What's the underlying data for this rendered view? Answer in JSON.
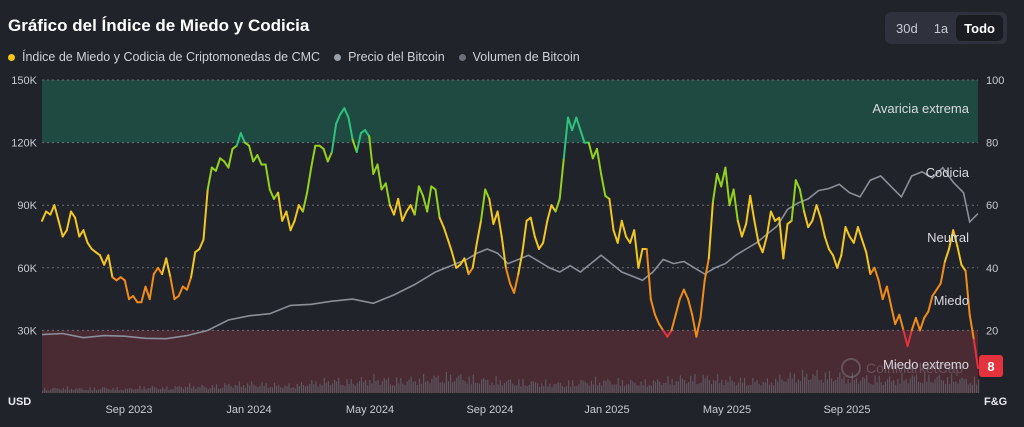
{
  "header": {
    "title": "Gráfico del Índice de Miedo y Codicia",
    "range_buttons": [
      {
        "label": "30d",
        "active": false
      },
      {
        "label": "1a",
        "active": false
      },
      {
        "label": "Todo",
        "active": true
      }
    ]
  },
  "legend": [
    {
      "label": "Índice de Miedo y Codicia de Criptomonedas de CMC",
      "color": "#f5c518"
    },
    {
      "label": "Precio del Bitcoin",
      "color": "#9aa0aa"
    },
    {
      "label": "Volumen de Bitcoin",
      "color": "#6c707a"
    }
  ],
  "watermark": "CoinMarketCap",
  "chart_data": {
    "type": "line",
    "x_ticks": [
      "Sep 2023",
      "Jan 2024",
      "May 2024",
      "Sep 2024",
      "Jan 2025",
      "May 2025",
      "Sep 2025"
    ],
    "y_left": {
      "unit_label": "USD",
      "ticks": [
        "30K",
        "60K",
        "90K",
        "120K",
        "150K"
      ],
      "range": [
        0,
        150000
      ]
    },
    "y_right": {
      "unit_label": "F&G",
      "ticks": [
        "20",
        "40",
        "60",
        "80",
        "100"
      ],
      "range": [
        0,
        100
      ]
    },
    "zones": [
      {
        "label": "Avaricia extrema",
        "range": [
          80,
          100
        ],
        "color": "#1f4a42"
      },
      {
        "label": "Codicia",
        "range": [
          60,
          80
        ]
      },
      {
        "label": "Neutral",
        "range": [
          40,
          60
        ]
      },
      {
        "label": "Miedo",
        "range": [
          20,
          40
        ]
      },
      {
        "label": "Miedo extremo",
        "range": [
          0,
          20
        ],
        "color": "#4a2a33"
      }
    ],
    "current_value": "8",
    "current_value_color": "#e5333d",
    "fear_greed_index": [
      [
        0,
        55
      ],
      [
        2,
        58
      ],
      [
        4,
        57
      ],
      [
        6,
        60
      ],
      [
        8,
        55
      ],
      [
        10,
        50
      ],
      [
        12,
        52
      ],
      [
        14,
        58
      ],
      [
        16,
        56
      ],
      [
        18,
        50
      ],
      [
        20,
        52
      ],
      [
        22,
        48
      ],
      [
        24,
        46
      ],
      [
        26,
        45
      ],
      [
        28,
        44
      ],
      [
        30,
        41
      ],
      [
        32,
        44
      ],
      [
        34,
        37
      ],
      [
        36,
        36
      ],
      [
        38,
        37
      ],
      [
        40,
        36
      ],
      [
        42,
        30
      ],
      [
        44,
        31
      ],
      [
        46,
        29
      ],
      [
        48,
        29
      ],
      [
        50,
        34
      ],
      [
        52,
        30
      ],
      [
        54,
        38
      ],
      [
        56,
        40
      ],
      [
        58,
        38
      ],
      [
        60,
        43
      ],
      [
        62,
        37
      ],
      [
        64,
        30
      ],
      [
        66,
        31
      ],
      [
        68,
        34
      ],
      [
        70,
        33
      ],
      [
        72,
        37
      ],
      [
        74,
        45
      ],
      [
        76,
        46
      ],
      [
        78,
        49
      ],
      [
        80,
        65
      ],
      [
        82,
        72
      ],
      [
        84,
        71
      ],
      [
        86,
        75
      ],
      [
        88,
        74
      ],
      [
        90,
        72
      ],
      [
        92,
        78
      ],
      [
        94,
        79
      ],
      [
        96,
        83
      ],
      [
        98,
        80
      ],
      [
        100,
        79
      ],
      [
        102,
        74
      ],
      [
        104,
        76
      ],
      [
        106,
        73
      ],
      [
        108,
        73
      ],
      [
        110,
        65
      ],
      [
        112,
        62
      ],
      [
        114,
        64
      ],
      [
        116,
        55
      ],
      [
        118,
        58
      ],
      [
        120,
        52
      ],
      [
        122,
        55
      ],
      [
        124,
        60
      ],
      [
        126,
        58
      ],
      [
        128,
        64
      ],
      [
        130,
        72
      ],
      [
        132,
        79
      ],
      [
        134,
        79
      ],
      [
        136,
        78
      ],
      [
        138,
        74
      ],
      [
        140,
        77
      ],
      [
        142,
        86
      ],
      [
        144,
        89
      ],
      [
        146,
        91
      ],
      [
        148,
        88
      ],
      [
        150,
        81
      ],
      [
        152,
        77
      ],
      [
        154,
        83
      ],
      [
        156,
        84
      ],
      [
        158,
        82
      ],
      [
        160,
        70
      ],
      [
        162,
        73
      ],
      [
        164,
        65
      ],
      [
        166,
        67
      ],
      [
        168,
        60
      ],
      [
        170,
        57
      ],
      [
        172,
        62
      ],
      [
        174,
        55
      ],
      [
        176,
        58
      ],
      [
        178,
        60
      ],
      [
        180,
        57
      ],
      [
        182,
        66
      ],
      [
        184,
        63
      ],
      [
        186,
        58
      ],
      [
        188,
        66
      ],
      [
        190,
        65
      ],
      [
        192,
        56
      ],
      [
        194,
        53
      ],
      [
        196,
        49
      ],
      [
        198,
        45
      ],
      [
        200,
        40
      ],
      [
        202,
        41
      ],
      [
        204,
        43
      ],
      [
        206,
        38
      ],
      [
        208,
        40
      ],
      [
        210,
        48
      ],
      [
        212,
        55
      ],
      [
        214,
        65
      ],
      [
        216,
        62
      ],
      [
        218,
        54
      ],
      [
        220,
        58
      ],
      [
        222,
        50
      ],
      [
        224,
        40
      ],
      [
        226,
        35
      ],
      [
        228,
        32
      ],
      [
        230,
        38
      ],
      [
        232,
        45
      ],
      [
        234,
        55
      ],
      [
        236,
        56
      ],
      [
        238,
        50
      ],
      [
        240,
        46
      ],
      [
        242,
        48
      ],
      [
        244,
        55
      ],
      [
        246,
        60
      ],
      [
        248,
        58
      ],
      [
        250,
        62
      ],
      [
        252,
        75
      ],
      [
        254,
        88
      ],
      [
        256,
        84
      ],
      [
        258,
        88
      ],
      [
        260,
        84
      ],
      [
        262,
        80
      ],
      [
        264,
        80
      ],
      [
        266,
        75
      ],
      [
        268,
        78
      ],
      [
        270,
        70
      ],
      [
        272,
        63
      ],
      [
        274,
        62
      ],
      [
        276,
        52
      ],
      [
        278,
        48
      ],
      [
        280,
        55
      ],
      [
        282,
        50
      ],
      [
        284,
        48
      ],
      [
        286,
        52
      ],
      [
        288,
        40
      ],
      [
        290,
        46
      ],
      [
        292,
        46
      ],
      [
        294,
        30
      ],
      [
        296,
        25
      ],
      [
        298,
        22
      ],
      [
        300,
        20
      ],
      [
        302,
        18
      ],
      [
        304,
        20
      ],
      [
        306,
        25
      ],
      [
        308,
        30
      ],
      [
        310,
        33
      ],
      [
        312,
        30
      ],
      [
        314,
        25
      ],
      [
        316,
        18
      ],
      [
        318,
        24
      ],
      [
        320,
        36
      ],
      [
        322,
        43
      ],
      [
        324,
        61
      ],
      [
        326,
        70
      ],
      [
        328,
        66
      ],
      [
        330,
        72
      ],
      [
        332,
        60
      ],
      [
        334,
        65
      ],
      [
        336,
        55
      ],
      [
        338,
        50
      ],
      [
        340,
        54
      ],
      [
        342,
        63
      ],
      [
        344,
        55
      ],
      [
        346,
        48
      ],
      [
        348,
        45
      ],
      [
        350,
        50
      ],
      [
        352,
        58
      ],
      [
        354,
        55
      ],
      [
        356,
        56
      ],
      [
        358,
        43
      ],
      [
        360,
        54
      ],
      [
        362,
        55
      ],
      [
        364,
        68
      ],
      [
        366,
        65
      ],
      [
        368,
        58
      ],
      [
        370,
        53
      ],
      [
        372,
        55
      ],
      [
        374,
        60
      ],
      [
        376,
        56
      ],
      [
        378,
        50
      ],
      [
        380,
        46
      ],
      [
        382,
        44
      ],
      [
        384,
        40
      ],
      [
        386,
        44
      ],
      [
        388,
        53
      ],
      [
        390,
        50
      ],
      [
        392,
        48
      ],
      [
        394,
        53
      ],
      [
        396,
        49
      ],
      [
        398,
        45
      ],
      [
        400,
        38
      ],
      [
        402,
        40
      ],
      [
        404,
        36
      ],
      [
        406,
        30
      ],
      [
        408,
        34
      ],
      [
        410,
        28
      ],
      [
        412,
        22
      ],
      [
        414,
        25
      ],
      [
        416,
        20
      ],
      [
        418,
        15
      ],
      [
        420,
        20
      ],
      [
        422,
        24
      ],
      [
        424,
        20
      ],
      [
        426,
        24
      ],
      [
        428,
        26
      ],
      [
        430,
        31
      ],
      [
        432,
        33
      ],
      [
        434,
        35
      ],
      [
        436,
        42
      ],
      [
        438,
        46
      ],
      [
        440,
        52
      ],
      [
        442,
        47
      ],
      [
        444,
        41
      ],
      [
        446,
        39
      ],
      [
        448,
        25
      ],
      [
        450,
        17
      ],
      [
        452,
        8
      ]
    ],
    "btc_price": [
      [
        0,
        28000
      ],
      [
        10,
        28500
      ],
      [
        20,
        26500
      ],
      [
        30,
        27500
      ],
      [
        40,
        27200
      ],
      [
        50,
        26200
      ],
      [
        60,
        26000
      ],
      [
        70,
        27500
      ],
      [
        80,
        30000
      ],
      [
        90,
        35000
      ],
      [
        100,
        37000
      ],
      [
        110,
        38000
      ],
      [
        120,
        42000
      ],
      [
        130,
        42500
      ],
      [
        140,
        44000
      ],
      [
        150,
        45000
      ],
      [
        160,
        43000
      ],
      [
        170,
        47000
      ],
      [
        180,
        52000
      ],
      [
        190,
        58000
      ],
      [
        200,
        62000
      ],
      [
        205,
        64000
      ],
      [
        210,
        67000
      ],
      [
        215,
        69000
      ],
      [
        220,
        67000
      ],
      [
        225,
        62000
      ],
      [
        230,
        64000
      ],
      [
        235,
        66000
      ],
      [
        240,
        63000
      ],
      [
        245,
        60000
      ],
      [
        250,
        58000
      ],
      [
        255,
        61000
      ],
      [
        260,
        58000
      ],
      [
        265,
        62000
      ],
      [
        270,
        66000
      ],
      [
        275,
        62000
      ],
      [
        280,
        58000
      ],
      [
        285,
        56000
      ],
      [
        290,
        54000
      ],
      [
        295,
        58000
      ],
      [
        300,
        64000
      ],
      [
        305,
        62000
      ],
      [
        310,
        63000
      ],
      [
        315,
        60000
      ],
      [
        320,
        57000
      ],
      [
        325,
        60000
      ],
      [
        330,
        62000
      ],
      [
        335,
        66000
      ],
      [
        340,
        69000
      ],
      [
        345,
        72000
      ],
      [
        350,
        76000
      ],
      [
        355,
        80000
      ],
      [
        360,
        88000
      ],
      [
        365,
        91000
      ],
      [
        370,
        93000
      ],
      [
        375,
        97000
      ],
      [
        380,
        98000
      ],
      [
        385,
        100000
      ],
      [
        390,
        96000
      ],
      [
        395,
        94000
      ],
      [
        400,
        102000
      ],
      [
        405,
        104000
      ],
      [
        410,
        99000
      ],
      [
        415,
        94000
      ],
      [
        420,
        104000
      ],
      [
        425,
        106000
      ],
      [
        430,
        103000
      ],
      [
        435,
        108000
      ],
      [
        440,
        101000
      ],
      [
        445,
        96000
      ],
      [
        448,
        82000
      ],
      [
        452,
        86000
      ]
    ],
    "btc_volume": [
      [
        0,
        4
      ],
      [
        10,
        5
      ],
      [
        20,
        4
      ],
      [
        30,
        5
      ],
      [
        40,
        4
      ],
      [
        50,
        6
      ],
      [
        60,
        5
      ],
      [
        70,
        7
      ],
      [
        80,
        6
      ],
      [
        90,
        8
      ],
      [
        100,
        9
      ],
      [
        110,
        8
      ],
      [
        120,
        7
      ],
      [
        130,
        10
      ],
      [
        140,
        12
      ],
      [
        150,
        11
      ],
      [
        160,
        14
      ],
      [
        170,
        12
      ],
      [
        180,
        13
      ],
      [
        190,
        15
      ],
      [
        200,
        16
      ],
      [
        210,
        13
      ],
      [
        220,
        12
      ],
      [
        230,
        11
      ],
      [
        240,
        10
      ],
      [
        250,
        9
      ],
      [
        260,
        11
      ],
      [
        270,
        12
      ],
      [
        280,
        11
      ],
      [
        290,
        10
      ],
      [
        300,
        12
      ],
      [
        310,
        14
      ],
      [
        320,
        15
      ],
      [
        330,
        13
      ],
      [
        340,
        12
      ],
      [
        350,
        11
      ],
      [
        360,
        16
      ],
      [
        370,
        18
      ],
      [
        380,
        17
      ],
      [
        390,
        15
      ],
      [
        400,
        14
      ],
      [
        410,
        13
      ],
      [
        420,
        16
      ],
      [
        430,
        15
      ],
      [
        440,
        14
      ],
      [
        450,
        12
      ]
    ]
  }
}
